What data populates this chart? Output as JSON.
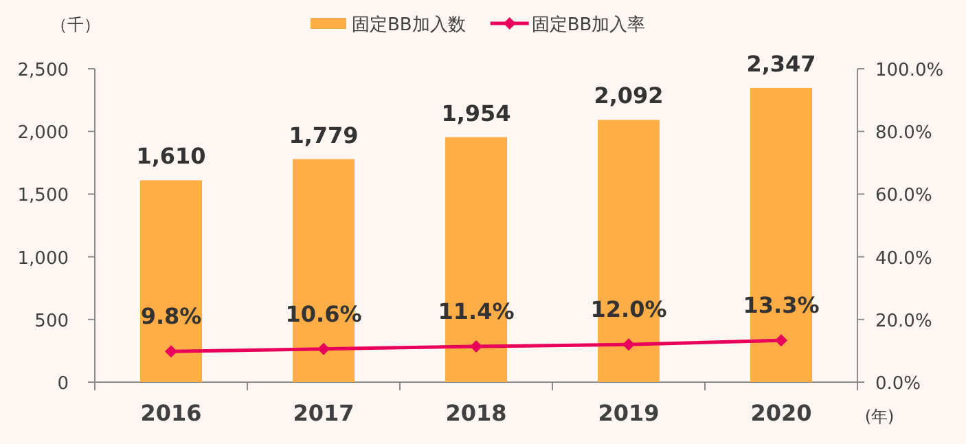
{
  "chart_data": {
    "type": "bar",
    "categories": [
      "2016",
      "2017",
      "2018",
      "2019",
      "2020"
    ],
    "ylabel": "（千）",
    "xlabel": "(年)",
    "series": [
      {
        "name": "固定BB加入数",
        "color": "#ffad47",
        "values": [
          1610,
          1779,
          1954,
          2092,
          2347
        ],
        "value_labels": [
          "1,610",
          "1,779",
          "1,954",
          "2,092",
          "2,347"
        ]
      },
      {
        "name": "固定BB加入率",
        "type": "line",
        "axis": "y2",
        "color": "#e8005a",
        "marker": "diamond",
        "values": [
          9.8,
          10.6,
          11.4,
          12.0,
          13.3
        ],
        "value_labels": [
          "9.8%",
          "10.6%",
          "11.4%",
          "12.0%",
          "13.3%"
        ]
      }
    ],
    "ylim": [
      0,
      2500
    ],
    "yticks": [
      0,
      500,
      {
        "value": 1000,
        "label": "1,000"
      },
      {
        "value": 1500,
        "label": "1,500"
      },
      {
        "value": 2000,
        "label": "2,000"
      },
      {
        "value": 2500,
        "label": "2,500"
      }
    ],
    "y2lim": [
      0,
      100
    ],
    "y2ticks": [
      {
        "value": 0,
        "label": "0.0%"
      },
      {
        "value": 20,
        "label": "20.0%"
      },
      {
        "value": 40,
        "label": "40.0%"
      },
      {
        "value": 60,
        "label": "60.0%"
      },
      {
        "value": 80,
        "label": "80.0%"
      },
      {
        "value": 100,
        "label": "100.0%"
      }
    ],
    "grid": false,
    "legend": "top"
  }
}
